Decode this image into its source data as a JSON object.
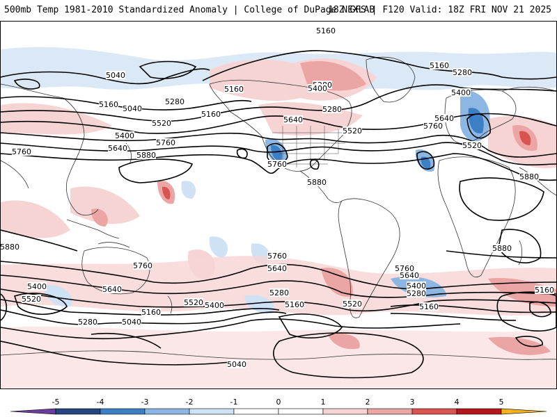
{
  "header": {
    "left": "500mb Temp 1981-2010 Standardized Anomaly | College of DuPage NEXLAB",
    "right": "18Z GFS | F120 Valid: 18Z FRI NOV 21 2025"
  },
  "colors": {
    "neg5": "#6a3d9a",
    "neg4": "#24467c",
    "neg3": "#3d7fc4",
    "neg2": "#8db7e3",
    "neg1": "#cfe1f4",
    "neutral": "#ffffff",
    "pos1": "#f7d4d4",
    "pos2": "#eca5a5",
    "pos3": "#d9534f",
    "pos4": "#b3171b",
    "pos5": "#7a0010",
    "over": "#f2b21d",
    "contour": "#000000",
    "coast": "#333333"
  },
  "colorbar": {
    "labels": [
      "-5",
      "-4",
      "-3",
      "-2",
      "-1",
      "0",
      "1",
      "2",
      "3",
      "4",
      "5"
    ]
  },
  "contour_labels": [
    {
      "text": "5160"
    },
    {
      "text": "5040"
    },
    {
      "text": "5160"
    },
    {
      "text": "5040"
    },
    {
      "text": "5400"
    },
    {
      "text": "5640"
    },
    {
      "text": "5520"
    },
    {
      "text": "5280"
    },
    {
      "text": "5160"
    },
    {
      "text": "5760"
    },
    {
      "text": "5760"
    },
    {
      "text": "5880"
    },
    {
      "text": "5160"
    },
    {
      "text": "5280"
    },
    {
      "text": "5400"
    },
    {
      "text": "5640"
    },
    {
      "text": "5280"
    },
    {
      "text": "5520"
    },
    {
      "text": "5760"
    },
    {
      "text": "5880"
    },
    {
      "text": "5160"
    },
    {
      "text": "5280"
    },
    {
      "text": "5400"
    },
    {
      "text": "5640"
    },
    {
      "text": "5760"
    },
    {
      "text": "5520"
    },
    {
      "text": "5880"
    },
    {
      "text": "5880"
    },
    {
      "text": "5880"
    },
    {
      "text": "5760"
    },
    {
      "text": "5640"
    },
    {
      "text": "5400"
    },
    {
      "text": "5520"
    },
    {
      "text": "5280"
    },
    {
      "text": "5040"
    },
    {
      "text": "5160"
    },
    {
      "text": "5520"
    },
    {
      "text": "5400"
    },
    {
      "text": "5760"
    },
    {
      "text": "5640"
    },
    {
      "text": "5280"
    },
    {
      "text": "5160"
    },
    {
      "text": "5520"
    },
    {
      "text": "5760"
    },
    {
      "text": "5640"
    },
    {
      "text": "5400"
    },
    {
      "text": "5280"
    },
    {
      "text": "5160"
    },
    {
      "text": "5160"
    },
    {
      "text": "5040"
    }
  ]
}
